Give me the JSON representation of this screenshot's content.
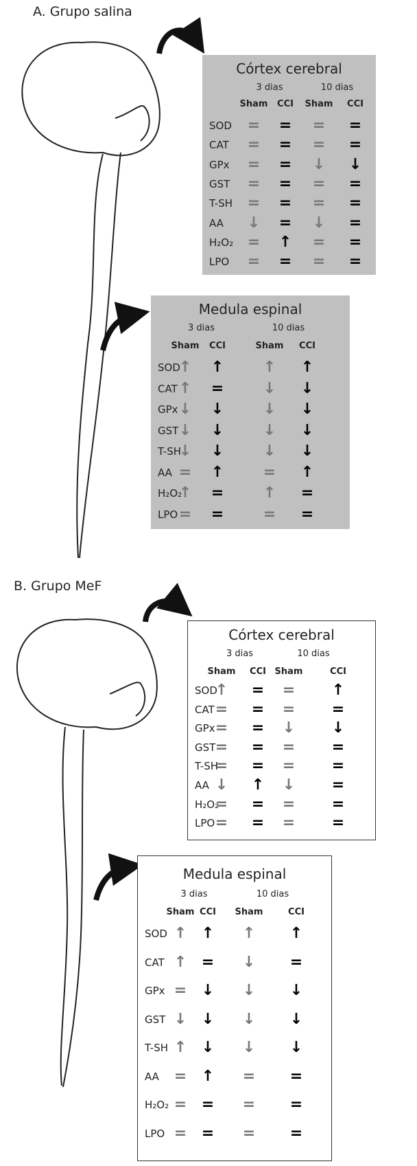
{
  "panels": [
    {
      "label": "A. Grupo salina",
      "boxes": [
        {
          "title": "Córtex cerebral",
          "periods": [
            "3 dias",
            "10 dias"
          ],
          "columns": [
            "Sham",
            "CCI",
            "Sham",
            "CCI"
          ],
          "rows": [
            {
              "label": "SOD",
              "values": [
                "=",
                "=",
                "=",
                "="
              ]
            },
            {
              "label": "CAT",
              "values": [
                "=",
                "=",
                "=",
                "="
              ]
            },
            {
              "label": "GPx",
              "values": [
                "=",
                "=",
                "↓",
                "↓"
              ]
            },
            {
              "label": "GST",
              "values": [
                "=",
                "=",
                "=",
                "="
              ]
            },
            {
              "label": "T-SH",
              "values": [
                "=",
                "=",
                "=",
                "="
              ]
            },
            {
              "label": "AA",
              "values": [
                "↓",
                "=",
                "↓",
                "="
              ]
            },
            {
              "label": "H₂O₂",
              "values": [
                "=",
                "↑",
                "=",
                "="
              ]
            },
            {
              "label": "LPO",
              "values": [
                "=",
                "=",
                "=",
                "="
              ]
            }
          ]
        },
        {
          "title": "Medula espinal",
          "periods": [
            "3 dias",
            "10 dias"
          ],
          "columns": [
            "Sham",
            "CCI",
            "Sham",
            "CCI"
          ],
          "rows": [
            {
              "label": "SOD",
              "values": [
                "↑",
                "↑",
                "↑",
                "↑"
              ]
            },
            {
              "label": "CAT",
              "values": [
                "↑",
                "=",
                "↓",
                "↓"
              ]
            },
            {
              "label": "GPx",
              "values": [
                "↓",
                "↓",
                "↓",
                "↓"
              ]
            },
            {
              "label": "GST",
              "values": [
                "↓",
                "↓",
                "↓",
                "↓"
              ]
            },
            {
              "label": "T-SH",
              "values": [
                "↓",
                "↓",
                "↓",
                "↓"
              ]
            },
            {
              "label": "AA",
              "values": [
                "=",
                "↑",
                "=",
                "↑"
              ]
            },
            {
              "label": "H₂O₂",
              "values": [
                "↑",
                "=",
                "↑",
                "="
              ]
            },
            {
              "label": "LPO",
              "values": [
                "=",
                "=",
                "=",
                "="
              ]
            }
          ]
        }
      ]
    },
    {
      "label": "B. Grupo MeF",
      "boxes": [
        {
          "title": "Córtex cerebral",
          "periods": [
            "3 dias",
            "10 dias"
          ],
          "columns": [
            "Sham",
            "CCI",
            "Sham",
            "CCI"
          ],
          "rows": [
            {
              "label": "SOD",
              "values": [
                "↑",
                "=",
                "=",
                "↑"
              ]
            },
            {
              "label": "CAT",
              "values": [
                "=",
                "=",
                "=",
                "="
              ]
            },
            {
              "label": "GPx",
              "values": [
                "=",
                "=",
                "↓",
                "↓"
              ]
            },
            {
              "label": "GST",
              "values": [
                "=",
                "=",
                "=",
                "="
              ]
            },
            {
              "label": "T-SH",
              "values": [
                "=",
                "=",
                "=",
                "="
              ]
            },
            {
              "label": "AA",
              "values": [
                "↓",
                "↑",
                "↓",
                "="
              ]
            },
            {
              "label": "H₂O₂",
              "values": [
                "=",
                "=",
                "=",
                "="
              ]
            },
            {
              "label": "LPO",
              "values": [
                "=",
                "=",
                "=",
                "="
              ]
            }
          ]
        },
        {
          "title": "Medula espinal",
          "periods": [
            "3 dias",
            "10 dias"
          ],
          "columns": [
            "Sham",
            "CCI",
            "Sham",
            "CCI"
          ],
          "rows": [
            {
              "label": "SOD",
              "values": [
                "↑",
                "↑",
                "↑",
                "↑"
              ]
            },
            {
              "label": "CAT",
              "values": [
                "↑",
                "=",
                "↓",
                "="
              ]
            },
            {
              "label": "GPx",
              "values": [
                "=",
                "↓",
                "↓",
                "↓"
              ]
            },
            {
              "label": "GST",
              "values": [
                "↓",
                "↓",
                "↓",
                "↓"
              ]
            },
            {
              "label": "T-SH",
              "values": [
                "↑",
                "↓",
                "↓",
                "↓"
              ]
            },
            {
              "label": "AA",
              "values": [
                "=",
                "↑",
                "=",
                "="
              ]
            },
            {
              "label": "H₂O₂",
              "values": [
                "=",
                "=",
                "=",
                "="
              ]
            },
            {
              "label": "LPO",
              "values": [
                "=",
                "=",
                "=",
                "="
              ]
            }
          ]
        }
      ]
    }
  ]
}
